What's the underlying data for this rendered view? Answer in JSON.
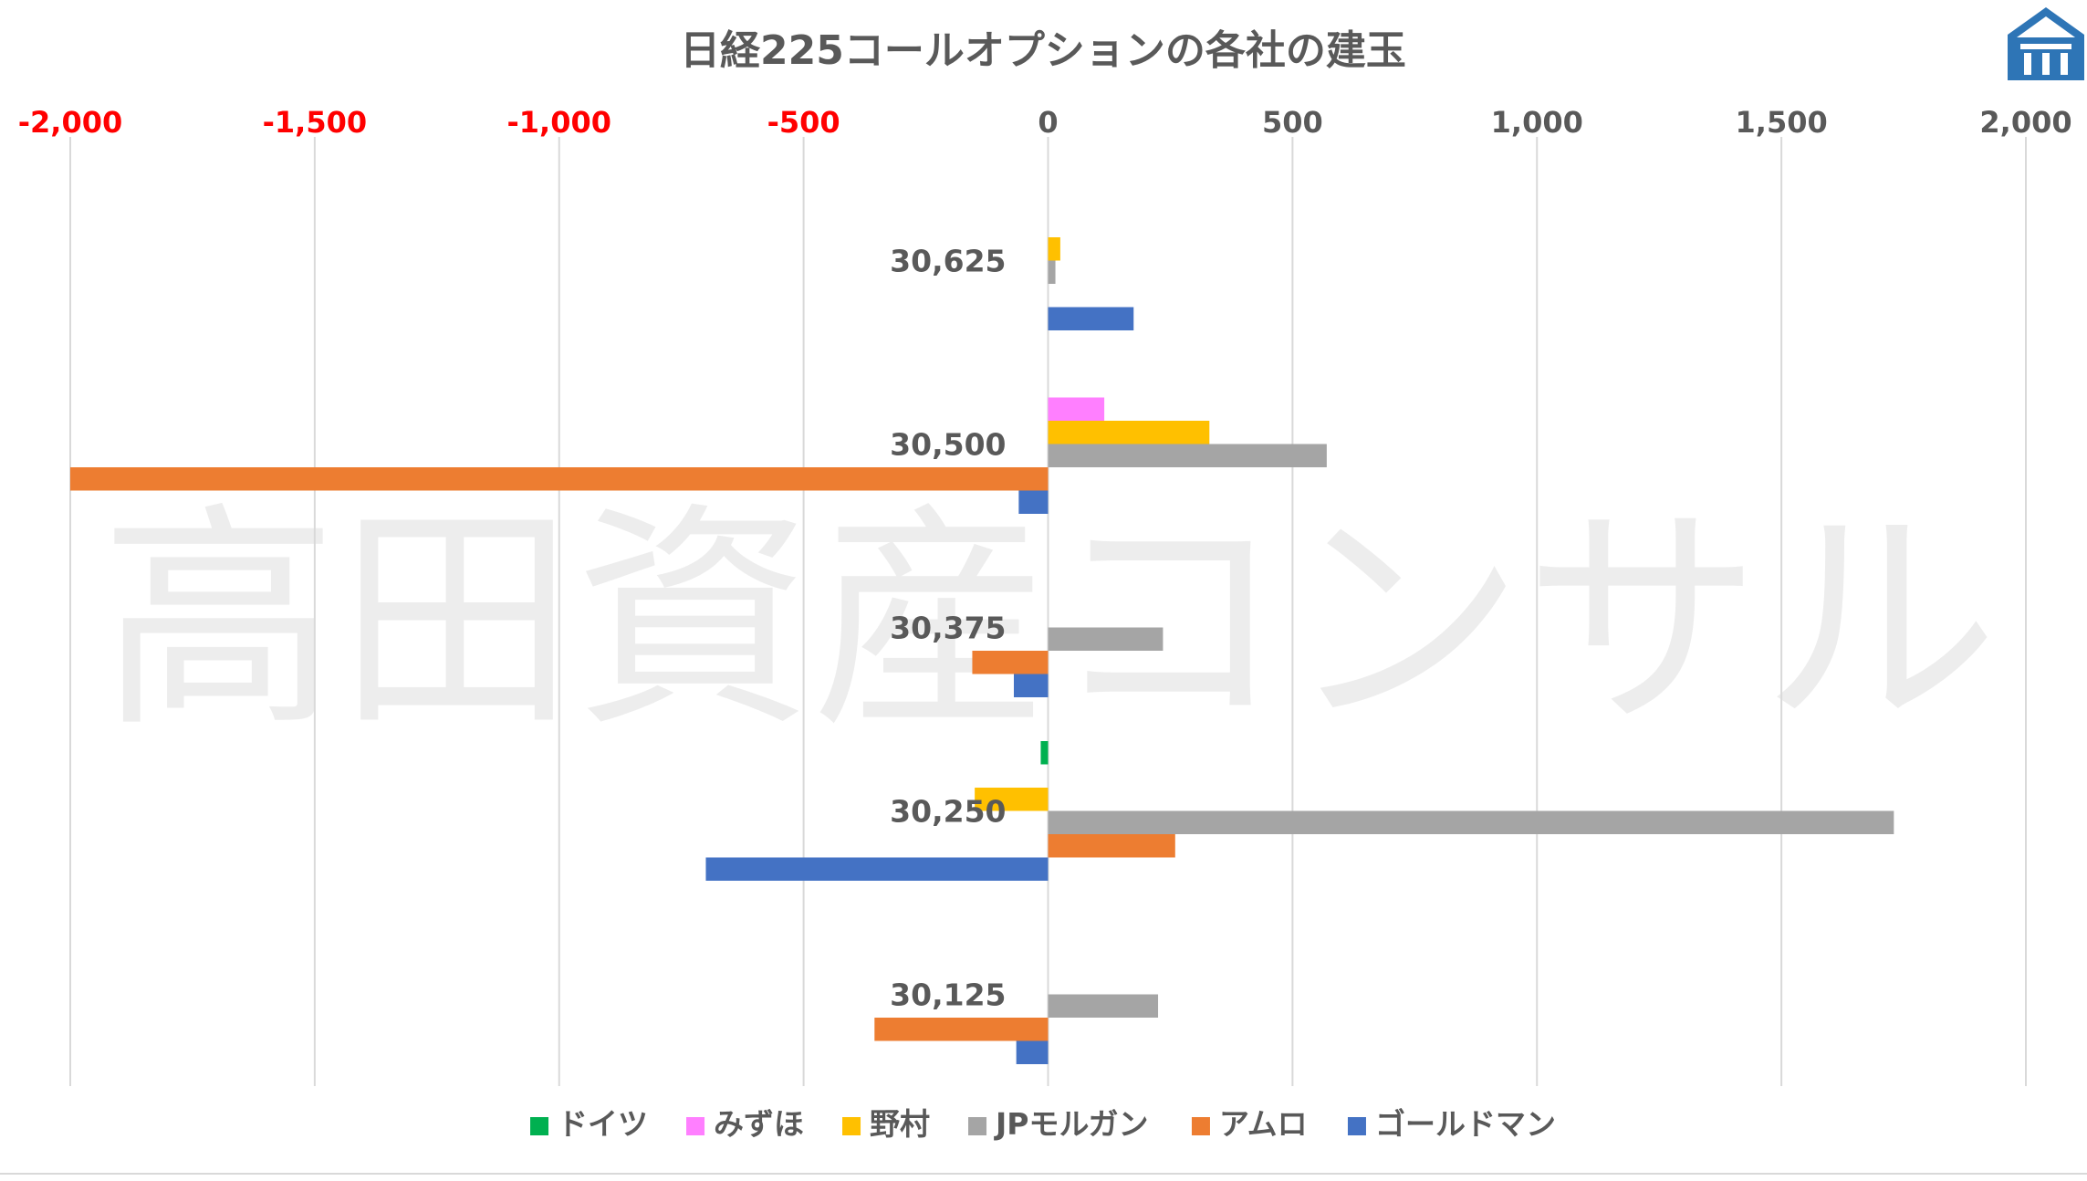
{
  "chart_data": {
    "type": "bar",
    "orientation": "horizontal",
    "title": "日経225コールオプションの各社の建玉",
    "categories": [
      "30,625",
      "30,500",
      "30,375",
      "30,250",
      "30,125"
    ],
    "series": [
      {
        "name": "ドイツ",
        "color": "#00B050",
        "values": [
          0,
          0,
          0,
          -15,
          0
        ]
      },
      {
        "name": "みずほ",
        "color": "#FF7FFF",
        "values": [
          0,
          115,
          0,
          0,
          0
        ]
      },
      {
        "name": "野村",
        "color": "#FFC000",
        "values": [
          25,
          330,
          0,
          -150,
          0
        ]
      },
      {
        "name": "JPモルガン",
        "color": "#A5A5A5",
        "values": [
          15,
          570,
          235,
          1730,
          225
        ]
      },
      {
        "name": "アムロ",
        "color": "#ED7D31",
        "values": [
          0,
          -2000,
          -155,
          260,
          -355
        ]
      },
      {
        "name": "ゴールドマン",
        "color": "#4472C4",
        "values": [
          175,
          -60,
          -70,
          -700,
          -65
        ]
      }
    ],
    "xlim": [
      -2000,
      2000
    ],
    "x_ticks": [
      "-2,000",
      "-1,500",
      "-1,000",
      "-500",
      "0",
      "500",
      "1,000",
      "1,500",
      "2,000"
    ],
    "x_tick_values": [
      -2000,
      -1500,
      -1000,
      -500,
      0,
      500,
      1000,
      1500,
      2000
    ],
    "negative_tick_color": "#FF0000",
    "positive_tick_color": "#595959",
    "grid": "vertical",
    "legend": "bottom"
  },
  "watermark": "高田資産コンサル",
  "logo_icon": "house-logo-icon"
}
